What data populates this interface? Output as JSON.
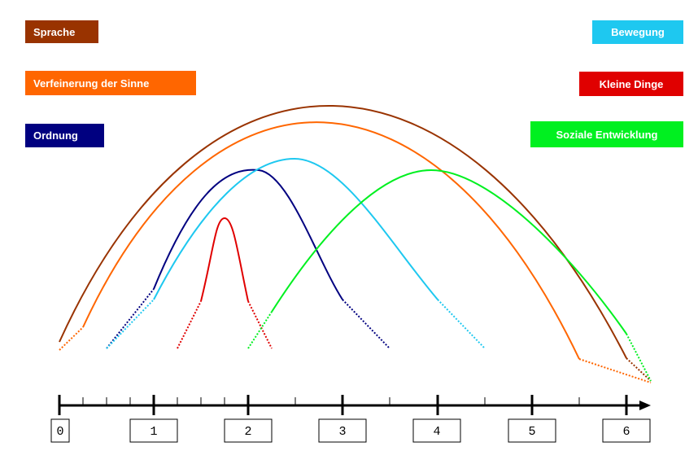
{
  "legend": {
    "sprache": "Sprache",
    "verfeinerung": "Verfeinerung der Sinne",
    "ordnung": "Ordnung",
    "bewegung": "Bewegung",
    "kleine_dinge": "Kleine Dinge",
    "soziale": "Soziale Entwicklung"
  },
  "axis": {
    "labels": [
      "0",
      "1",
      "2",
      "3",
      "4",
      "5",
      "6"
    ]
  }
}
